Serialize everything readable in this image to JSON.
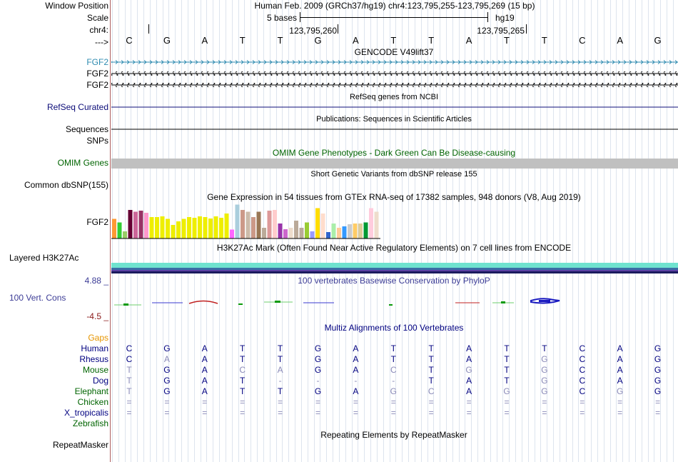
{
  "header": {
    "window_position_label": "Window Position",
    "window_position_text": "Human Feb. 2009 (GRCh37/hg19)   chr4:123,795,255-123,795,269 (15 bp)",
    "scale_label": "Scale",
    "scale_text": "5 bases",
    "scale_assembly": "hg19",
    "chrom_label": "chr4:",
    "chrom_pos_1": "123,795,260",
    "chrom_pos_2": "123,795,265",
    "strand_label": "--->"
  },
  "sequence": [
    "C",
    "G",
    "A",
    "T",
    "T",
    "G",
    "A",
    "T",
    "T",
    "A",
    "T",
    "T",
    "C",
    "A",
    "G"
  ],
  "gencode": {
    "title": "GENCODE V49lift37",
    "genes": [
      "FGF2",
      "FGF2",
      "FGF2"
    ],
    "color_first": "#2e8bb0"
  },
  "refseq": {
    "title": "RefSeq genes from NCBI",
    "label": "RefSeq Curated"
  },
  "publications": {
    "title": "Publications: Sequences in Scientific Articles",
    "label": "Sequences"
  },
  "snps_label": "SNPs",
  "omim": {
    "title": "OMIM Gene Phenotypes - Dark Green Can Be Disease-causing",
    "label": "OMIM Genes"
  },
  "dbsnp": {
    "title": "Short Genetic Variants from dbSNP release 155",
    "label": "Common dbSNP(155)"
  },
  "gtex": {
    "title": "Gene Expression in 54 tissues from GTEx RNA-seq of 17382 samples, 948 donors (V8, Aug 2019)",
    "label": "FGF2"
  },
  "h3k27ac": {
    "title": "H3K27Ac Mark (Often Found Near Active Regulatory Elements) on 7 cell lines from ENCODE",
    "label": "Layered H3K27Ac"
  },
  "phylop": {
    "title": "100 vertebrates Basewise Conservation by PhyloP",
    "label": "100 Vert. Cons",
    "max": "4.88 _",
    "min": "-4.5 _"
  },
  "multiz": {
    "title": "Multiz Alignments of 100 Vertebrates",
    "gaps_label": "Gaps",
    "species": [
      {
        "name": "Human",
        "color": "#000080",
        "bases": [
          "C",
          "G",
          "A",
          "T",
          "T",
          "G",
          "A",
          "T",
          "T",
          "A",
          "T",
          "T",
          "C",
          "A",
          "G"
        ]
      },
      {
        "name": "Rhesus",
        "color": "#000080",
        "bases": [
          "C",
          "A",
          "A",
          "T",
          "T",
          "G",
          "A",
          "T",
          "T",
          "A",
          "T",
          "G",
          "C",
          "A",
          "G"
        ]
      },
      {
        "name": "Mouse",
        "color": "#006400",
        "bases": [
          "T",
          "G",
          "A",
          "C",
          "A",
          "G",
          "A",
          "C",
          "T",
          "G",
          "T",
          "G",
          "C",
          "A",
          "G"
        ]
      },
      {
        "name": "Dog",
        "color": "#000080",
        "bases": [
          "T",
          "G",
          "A",
          "T",
          "-",
          "-",
          "-",
          "-",
          "T",
          "A",
          "T",
          "G",
          "C",
          "A",
          "G"
        ]
      },
      {
        "name": "Elephant",
        "color": "#006400",
        "bases": [
          "T",
          "G",
          "A",
          "T",
          "T",
          "G",
          "A",
          "G",
          "C",
          "A",
          "G",
          "G",
          "C",
          "G",
          "G"
        ]
      },
      {
        "name": "Chicken",
        "color": "#006400",
        "bases": [
          "=",
          "=",
          "=",
          "=",
          "=",
          "=",
          "=",
          "=",
          "=",
          "=",
          "=",
          "=",
          "=",
          "=",
          "="
        ]
      },
      {
        "name": "X_tropicalis",
        "color": "#000080",
        "bases": [
          "=",
          "=",
          "=",
          "=",
          "=",
          "=",
          "=",
          "=",
          "=",
          "=",
          "=",
          "=",
          "=",
          "=",
          "="
        ]
      },
      {
        "name": "Zebrafish",
        "color": "#006400",
        "bases": []
      }
    ]
  },
  "repeatmasker": {
    "title": "Repeating Elements by RepeatMasker",
    "label": "RepeatMasker"
  }
}
